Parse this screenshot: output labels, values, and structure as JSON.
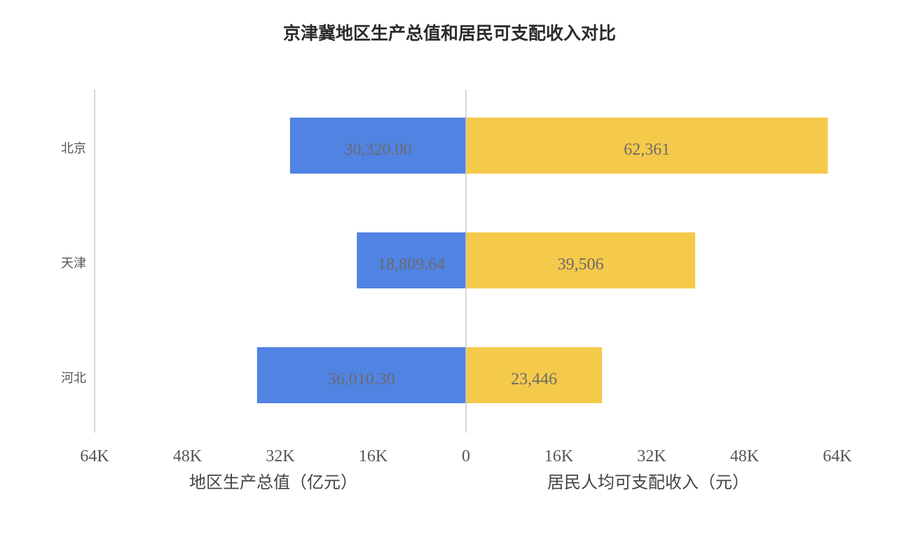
{
  "title": "京津冀地区生产总值和居民可支配收入对比",
  "chart_data": {
    "type": "bar",
    "orientation": "horizontal-diverging",
    "categories": [
      "北京",
      "天津",
      "河北"
    ],
    "series": [
      {
        "name": "地区生产总值（亿元）",
        "side": "left",
        "color": "#5183e3",
        "values": [
          30320.0,
          18809.64,
          36010.3
        ],
        "labels": [
          "30,320.00",
          "18,809.64",
          "36,010.30"
        ]
      },
      {
        "name": "居民人均可支配收入（元）",
        "side": "right",
        "color": "#f5c94a",
        "values": [
          62361,
          39506,
          23446
        ],
        "labels": [
          "62,361",
          "39,506",
          "23,446"
        ]
      }
    ],
    "left_axis": {
      "label": "地区生产总值（亿元）",
      "ticks": [
        "64K",
        "48K",
        "32K",
        "16K"
      ],
      "range": [
        0,
        64000
      ]
    },
    "right_axis": {
      "label": "居民人均可支配收入（元）",
      "ticks": [
        "0",
        "16K",
        "32K",
        "48K",
        "64K"
      ],
      "range": [
        0,
        64000
      ]
    },
    "grid": false
  }
}
